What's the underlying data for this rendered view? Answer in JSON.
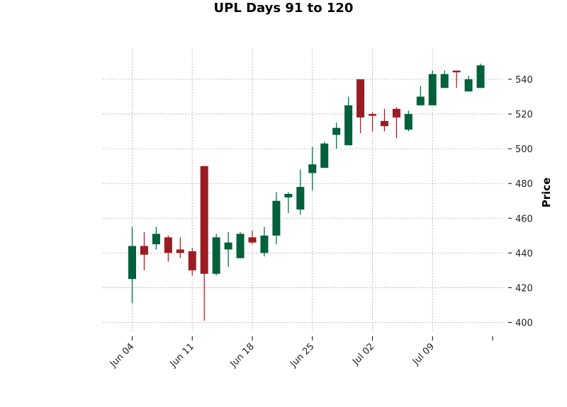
{
  "chart_data": {
    "type": "candlestick",
    "title": "UPL Days 91 to 120",
    "ylabel": "Price",
    "ylim": [
      394,
      557
    ],
    "y_ticks": [
      400,
      420,
      440,
      460,
      480,
      500,
      520,
      540
    ],
    "x_tick_labels": [
      "Jun 04",
      "Jun 11",
      "Jun 18",
      "Jun 25",
      "Jul 02",
      "Jul 09",
      ""
    ],
    "x_tick_indices": [
      0,
      5,
      10,
      15,
      20,
      25,
      30
    ],
    "grid": true,
    "colors": {
      "up": "#00613a",
      "down": "#9e1b22",
      "grid": "#b0b0b0"
    },
    "candles": [
      {
        "o": 425,
        "h": 455,
        "l": 411,
        "c": 444
      },
      {
        "o": 444,
        "h": 452,
        "l": 430,
        "c": 439
      },
      {
        "o": 445,
        "h": 455,
        "l": 442,
        "c": 451
      },
      {
        "o": 449,
        "h": 450,
        "l": 435,
        "c": 440
      },
      {
        "o": 442,
        "h": 449,
        "l": 437,
        "c": 440
      },
      {
        "o": 441,
        "h": 443,
        "l": 427,
        "c": 430
      },
      {
        "o": 490,
        "h": 490,
        "l": 401,
        "c": 428
      },
      {
        "o": 428,
        "h": 451,
        "l": 427,
        "c": 449
      },
      {
        "o": 442,
        "h": 452,
        "l": 432,
        "c": 446
      },
      {
        "o": 437,
        "h": 452,
        "l": 437,
        "c": 451
      },
      {
        "o": 449,
        "h": 453,
        "l": 445,
        "c": 446
      },
      {
        "o": 440,
        "h": 455,
        "l": 438,
        "c": 450
      },
      {
        "o": 450,
        "h": 475,
        "l": 445,
        "c": 470
      },
      {
        "o": 472,
        "h": 475,
        "l": 463,
        "c": 474
      },
      {
        "o": 465,
        "h": 488,
        "l": 462,
        "c": 478
      },
      {
        "o": 486,
        "h": 501,
        "l": 476,
        "c": 491
      },
      {
        "o": 489,
        "h": 504,
        "l": 489,
        "c": 503
      },
      {
        "o": 508,
        "h": 515,
        "l": 500,
        "c": 512
      },
      {
        "o": 502,
        "h": 530,
        "l": 502,
        "c": 525
      },
      {
        "o": 540,
        "h": 540,
        "l": 509,
        "c": 518
      },
      {
        "o": 520,
        "h": 521,
        "l": 510,
        "c": 519
      },
      {
        "o": 516,
        "h": 523,
        "l": 510,
        "c": 513
      },
      {
        "o": 523,
        "h": 524,
        "l": 506,
        "c": 518
      },
      {
        "o": 511,
        "h": 522,
        "l": 510,
        "c": 520
      },
      {
        "o": 525,
        "h": 536,
        "l": 525,
        "c": 530
      },
      {
        "o": 525,
        "h": 545,
        "l": 525,
        "c": 543
      },
      {
        "o": 535,
        "h": 545,
        "l": 535,
        "c": 543
      },
      {
        "o": 545,
        "h": 545,
        "l": 535,
        "c": 544
      },
      {
        "o": 533,
        "h": 542,
        "l": 533,
        "c": 540
      },
      {
        "o": 535,
        "h": 549,
        "l": 535,
        "c": 548
      }
    ]
  }
}
